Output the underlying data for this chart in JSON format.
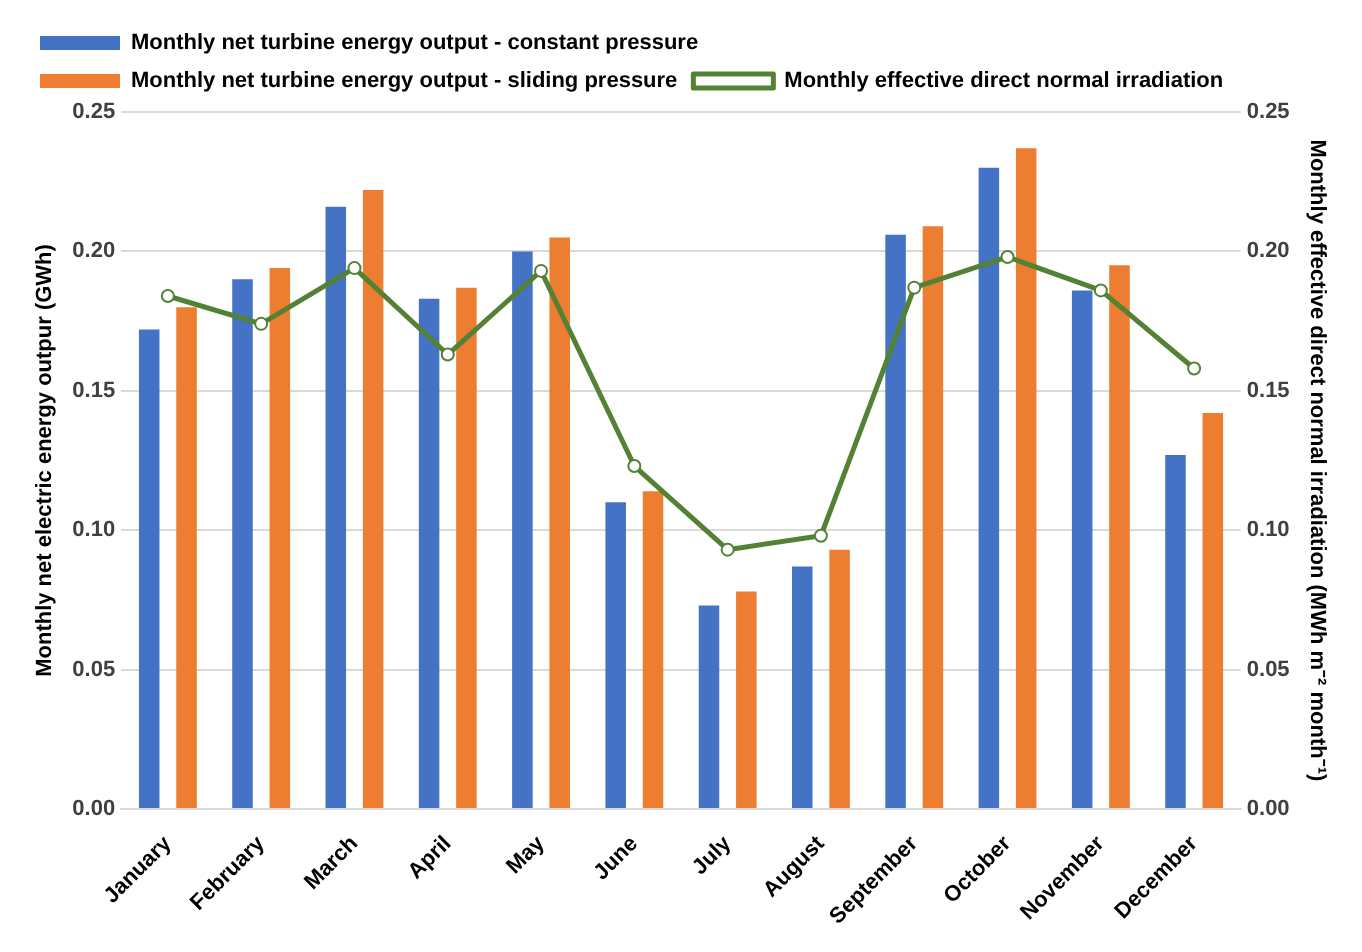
{
  "chart_data": {
    "type": "bar",
    "categories": [
      "January",
      "February",
      "March",
      "April",
      "May",
      "June",
      "July",
      "August",
      "September",
      "October",
      "November",
      "December"
    ],
    "series": [
      {
        "name": "Monthly net turbine energy output - constant pressure",
        "color": "#4472c4",
        "values": [
          0.172,
          0.19,
          0.216,
          0.183,
          0.2,
          0.11,
          0.073,
          0.087,
          0.206,
          0.23,
          0.186,
          0.127
        ]
      },
      {
        "name": "Monthly net turbine energy output - sliding pressure",
        "color": "#ed7d31",
        "values": [
          0.18,
          0.194,
          0.222,
          0.187,
          0.205,
          0.114,
          0.078,
          0.093,
          0.209,
          0.237,
          0.195,
          0.142
        ]
      },
      {
        "name": "Monthly effective direct normal irradiation",
        "color": "#548235",
        "type": "line",
        "axis": "y2",
        "marker": "circle",
        "values": [
          0.184,
          0.174,
          0.194,
          0.163,
          0.193,
          0.123,
          0.093,
          0.098,
          0.187,
          0.198,
          0.186,
          0.158
        ]
      }
    ],
    "ylabel": "Monthly net electric energy outpur (GWh)",
    "y2label": "Monthly effective direct normal irradiation (MWh m⁻² month⁻¹)",
    "ylim": [
      0,
      0.25
    ],
    "yticks": [
      {
        "value": 0,
        "label": "0.00"
      },
      {
        "value": 0.05,
        "label": "0.05"
      },
      {
        "value": 0.1,
        "label": "0.10"
      },
      {
        "value": 0.15,
        "label": "0.15"
      },
      {
        "value": 0.2,
        "label": "0.20"
      },
      {
        "value": 0.25,
        "label": "0.25"
      }
    ],
    "y2lim": [
      0,
      0.25
    ],
    "y2ticks": [
      {
        "value": 0,
        "label": "0.00"
      },
      {
        "value": 0.05,
        "label": "0.05"
      },
      {
        "value": 0.1,
        "label": "0.10"
      },
      {
        "value": 0.15,
        "label": "0.15"
      },
      {
        "value": 0.2,
        "label": "0.20"
      },
      {
        "value": 0.25,
        "label": "0.25"
      }
    ],
    "grid": "y",
    "legend": "top"
  }
}
